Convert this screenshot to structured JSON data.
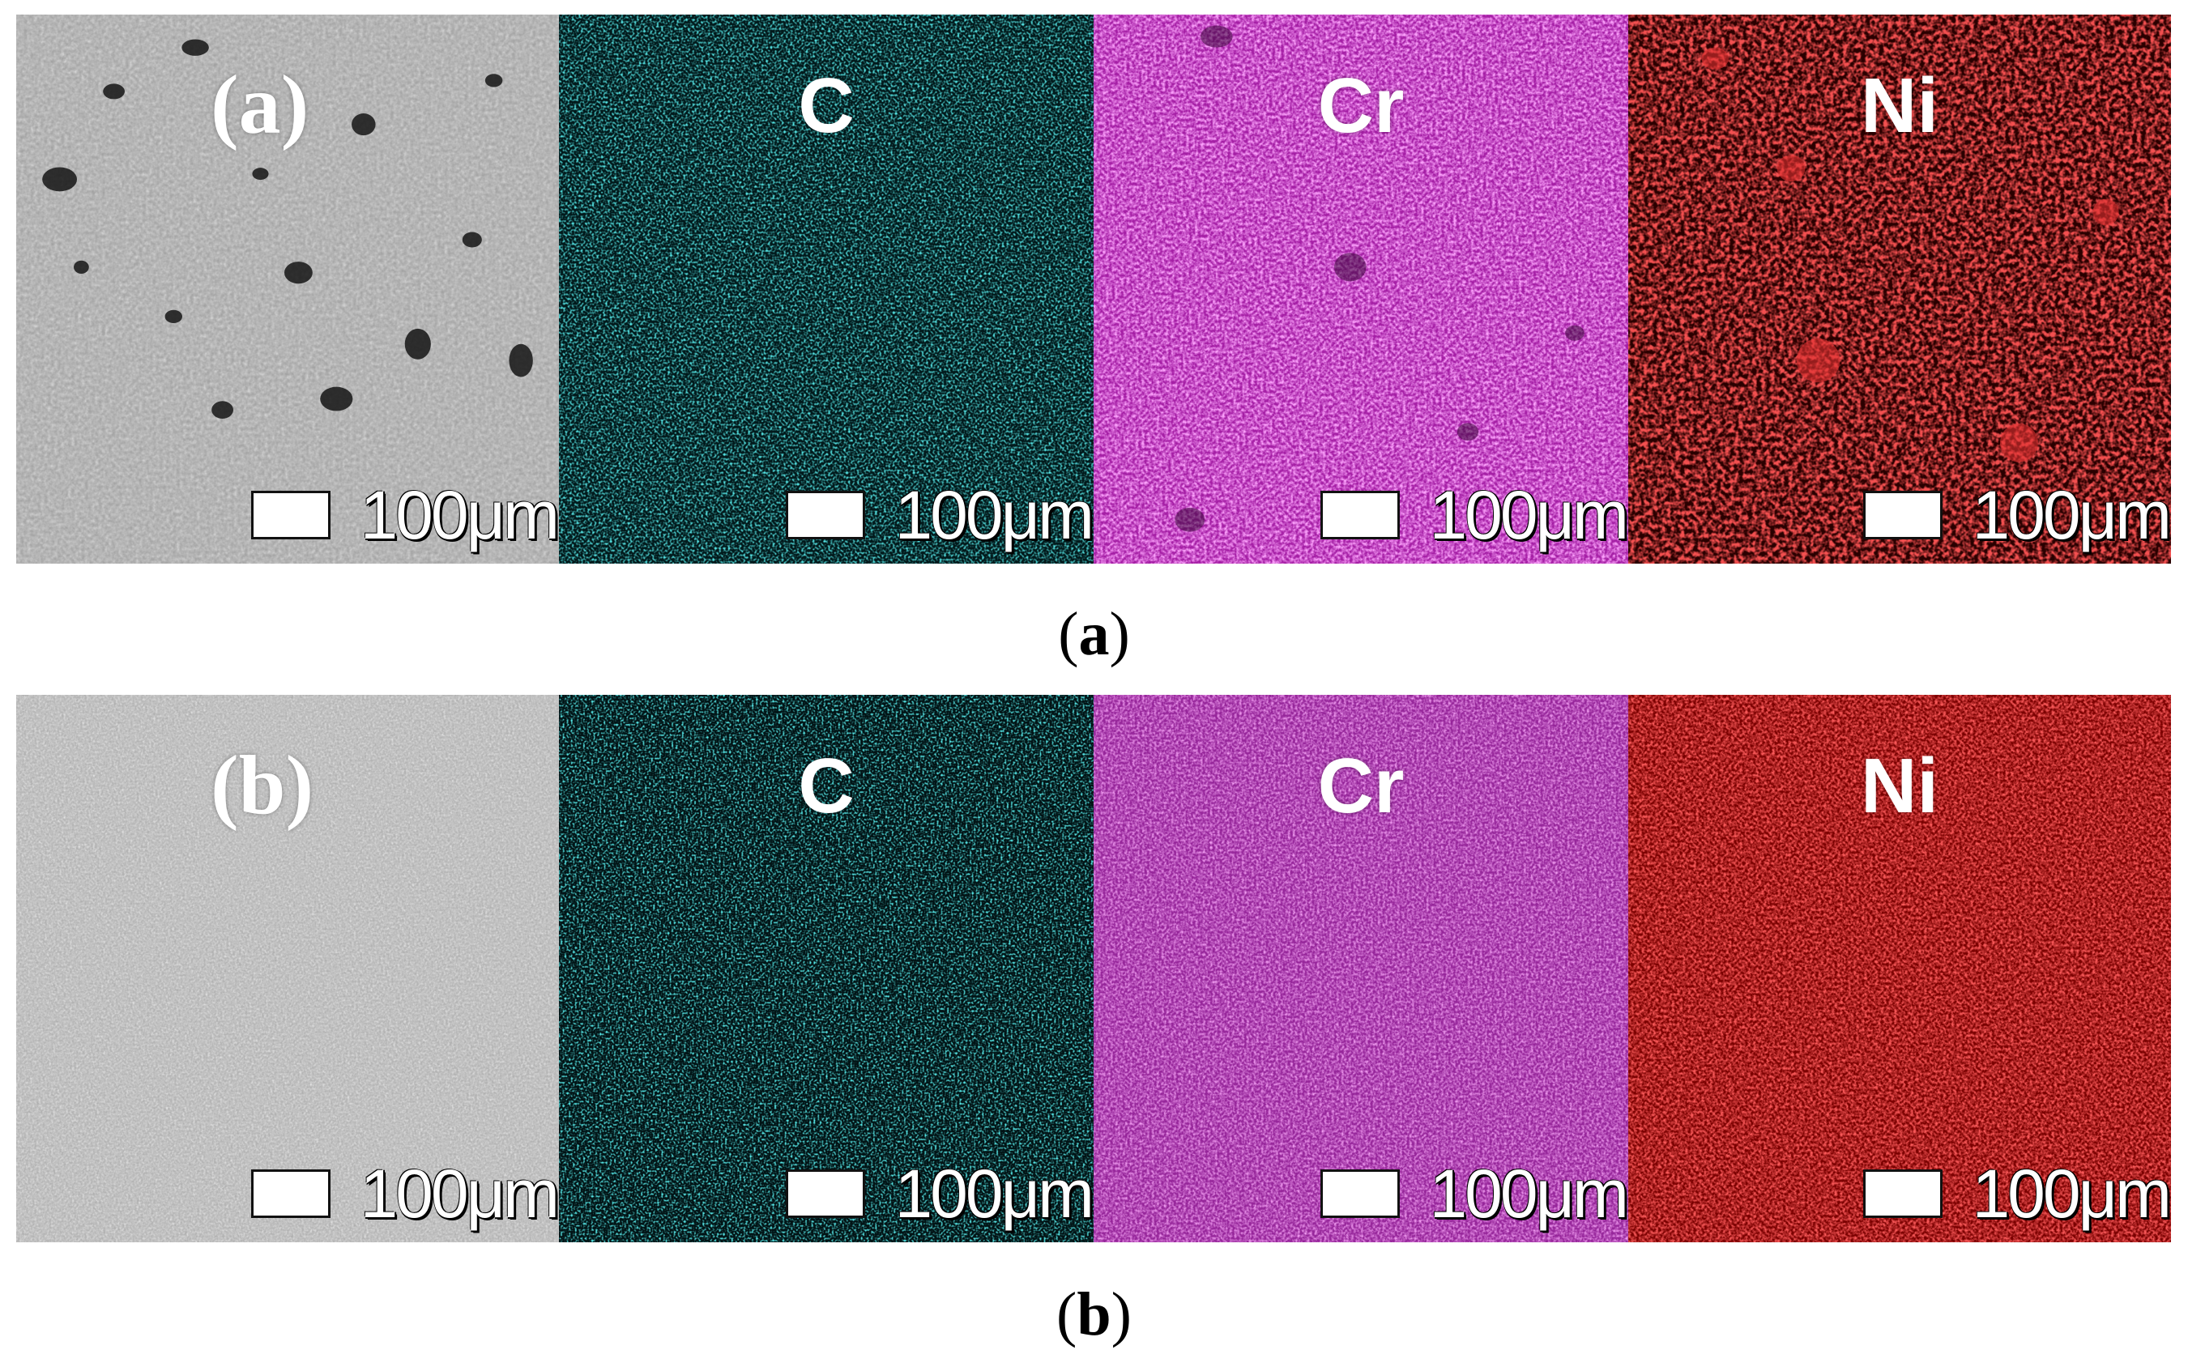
{
  "figure": {
    "rows": [
      {
        "id": "a",
        "caption_open": "(",
        "caption_letter": "a",
        "caption_close": ")",
        "panels": [
          {
            "label": "(a)",
            "kind": "sem",
            "color": "#9a9a9a",
            "scale_text": "100μm"
          },
          {
            "label": "C",
            "kind": "map",
            "color": "#18c8c8",
            "scale_text": "100μm"
          },
          {
            "label": "Cr",
            "kind": "map",
            "color": "#d63ad6",
            "scale_text": "100μm"
          },
          {
            "label": "Ni",
            "kind": "map",
            "color": "#d01818",
            "scale_text": "100μm"
          }
        ]
      },
      {
        "id": "b",
        "caption_open": "(",
        "caption_letter": "b",
        "caption_close": ")",
        "panels": [
          {
            "label": "(b)",
            "kind": "sem",
            "color": "#a8a8a8",
            "scale_text": "100μm"
          },
          {
            "label": "C",
            "kind": "map",
            "color": "#18c8c8",
            "scale_text": "100μm"
          },
          {
            "label": "Cr",
            "kind": "map",
            "color": "#b43ab4",
            "scale_text": "100μm"
          },
          {
            "label": "Ni",
            "kind": "map",
            "color": "#d01010",
            "scale_text": "100μm"
          }
        ]
      }
    ]
  }
}
